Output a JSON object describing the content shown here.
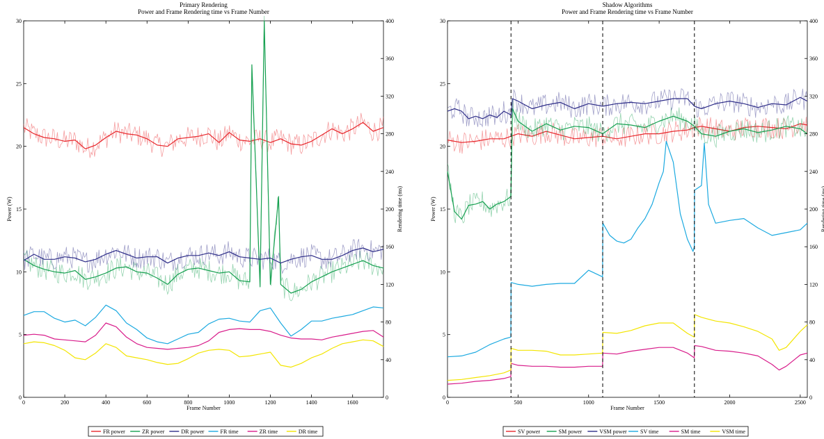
{
  "chart_data": [
    {
      "type": "line",
      "title": "Primary Rendering",
      "subtitle": "Power and Frame Rendering time vs Frame Number",
      "xlabel": "Frame Number",
      "ylabel": "Power (W)",
      "ylabel_right": "Rendering time (ms)",
      "xlim": [
        0,
        1750
      ],
      "ylim": [
        0,
        30
      ],
      "ylim_right": [
        0,
        400
      ],
      "xticks": [
        0,
        200,
        400,
        600,
        800,
        1000,
        1200,
        1400,
        1600
      ],
      "yticks": [
        0,
        5,
        10,
        15,
        20,
        25,
        30
      ],
      "yticks_right": [
        0,
        40,
        80,
        120,
        160,
        200,
        240,
        280,
        320,
        360,
        400
      ],
      "grid": false,
      "legend_position": "bottom",
      "series": [
        {
          "name": "FR power",
          "axis": "left",
          "color": "#e8262b",
          "x": [
            0,
            50,
            100,
            150,
            200,
            250,
            300,
            350,
            400,
            450,
            500,
            550,
            600,
            650,
            700,
            750,
            800,
            850,
            900,
            950,
            1000,
            1050,
            1100,
            1150,
            1200,
            1250,
            1300,
            1350,
            1400,
            1450,
            1500,
            1550,
            1600,
            1650,
            1700,
            1750
          ],
          "y": [
            21.5,
            21.0,
            20.7,
            20.6,
            20.4,
            20.5,
            19.8,
            20.1,
            20.7,
            21.2,
            21.0,
            20.9,
            20.6,
            20.1,
            20.0,
            20.6,
            20.7,
            20.8,
            21.0,
            20.3,
            21.1,
            20.5,
            20.4,
            20.6,
            20.3,
            20.6,
            20.2,
            20.1,
            20.4,
            20.9,
            21.4,
            21.0,
            21.4,
            21.9,
            21.2,
            21.5
          ]
        },
        {
          "name": "ZR power",
          "axis": "left",
          "color": "#16a050",
          "x": [
            0,
            50,
            100,
            150,
            200,
            250,
            300,
            350,
            400,
            450,
            500,
            550,
            600,
            650,
            700,
            750,
            800,
            850,
            900,
            950,
            1000,
            1050,
            1100,
            1110,
            1150,
            1170,
            1200,
            1240,
            1250,
            1300,
            1350,
            1400,
            1450,
            1500,
            1550,
            1600,
            1650,
            1700,
            1750
          ],
          "y": [
            11.0,
            10.5,
            10.2,
            10.0,
            9.9,
            10.1,
            9.4,
            9.6,
            9.9,
            10.3,
            10.4,
            10.0,
            9.9,
            9.5,
            9.0,
            9.8,
            10.2,
            10.3,
            10.1,
            9.9,
            10.0,
            9.3,
            9.2,
            26.5,
            8.8,
            30.0,
            9.0,
            16.0,
            9.0,
            8.3,
            8.6,
            9.2,
            9.6,
            10.0,
            10.3,
            10.6,
            10.9,
            10.5,
            10.3
          ]
        },
        {
          "name": "DR power",
          "axis": "left",
          "color": "#2e2d88",
          "x": [
            0,
            50,
            100,
            150,
            200,
            250,
            300,
            350,
            400,
            450,
            500,
            550,
            600,
            650,
            700,
            750,
            800,
            850,
            900,
            950,
            1000,
            1050,
            1100,
            1150,
            1200,
            1250,
            1300,
            1350,
            1400,
            1450,
            1500,
            1550,
            1600,
            1650,
            1700,
            1750
          ],
          "y": [
            10.9,
            11.4,
            11.0,
            11.0,
            11.2,
            11.1,
            10.8,
            11.0,
            11.4,
            11.7,
            11.4,
            11.1,
            11.2,
            11.2,
            10.7,
            11.1,
            11.3,
            11.3,
            11.5,
            11.3,
            11.6,
            11.2,
            11.1,
            11.0,
            11.1,
            10.7,
            11.0,
            11.2,
            11.3,
            11.0,
            11.0,
            11.3,
            11.7,
            11.9,
            11.6,
            11.8
          ]
        },
        {
          "name": "FR time",
          "axis": "right",
          "color": "#1ba9e0",
          "x": [
            0,
            50,
            100,
            150,
            200,
            250,
            300,
            350,
            400,
            450,
            500,
            550,
            600,
            650,
            700,
            750,
            800,
            850,
            900,
            950,
            1000,
            1050,
            1100,
            1150,
            1200,
            1250,
            1300,
            1350,
            1400,
            1450,
            1500,
            1550,
            1600,
            1650,
            1700,
            1750
          ],
          "y": [
            87,
            91,
            91,
            84,
            80,
            82,
            76,
            85,
            98,
            92,
            79,
            72,
            63,
            59,
            57,
            62,
            67,
            69,
            78,
            83,
            84,
            81,
            80,
            92,
            95,
            79,
            65,
            72,
            81,
            81,
            84,
            86,
            88,
            92,
            96,
            95
          ]
        },
        {
          "name": "ZR time",
          "axis": "right",
          "color": "#d81b8a",
          "x": [
            0,
            50,
            100,
            150,
            200,
            250,
            300,
            350,
            400,
            450,
            500,
            550,
            600,
            650,
            700,
            750,
            800,
            850,
            900,
            950,
            1000,
            1050,
            1100,
            1150,
            1200,
            1250,
            1300,
            1350,
            1400,
            1450,
            1500,
            1550,
            1600,
            1650,
            1700,
            1750
          ],
          "y": [
            66,
            67,
            66,
            62,
            61,
            60,
            59,
            66,
            79,
            75,
            64,
            57,
            53,
            52,
            51,
            52,
            53,
            55,
            60,
            69,
            72,
            73,
            72,
            72,
            70,
            66,
            63,
            62,
            62,
            61,
            64,
            66,
            68,
            70,
            71,
            64
          ]
        },
        {
          "name": "DR time",
          "axis": "right",
          "color": "#f3e500",
          "x": [
            0,
            50,
            100,
            150,
            200,
            250,
            300,
            350,
            400,
            450,
            500,
            550,
            600,
            650,
            700,
            750,
            800,
            850,
            900,
            950,
            1000,
            1050,
            1100,
            1150,
            1200,
            1250,
            1300,
            1350,
            1400,
            1450,
            1500,
            1550,
            1600,
            1650,
            1700,
            1750
          ],
          "y": [
            57,
            59,
            58,
            55,
            50,
            42,
            40,
            47,
            57,
            53,
            44,
            42,
            40,
            37,
            35,
            36,
            41,
            47,
            50,
            51,
            50,
            43,
            44,
            46,
            48,
            34,
            32,
            36,
            42,
            46,
            52,
            57,
            59,
            61,
            60,
            54
          ]
        }
      ]
    },
    {
      "type": "line",
      "title": "Shadow Algorithms",
      "subtitle": "Power and Frame Rendering time vs Frame Number",
      "xlabel": "Frame Number",
      "ylabel": "Power (W)",
      "ylabel_right": "Rendering time (ms)",
      "xlim": [
        0,
        2550
      ],
      "ylim": [
        0,
        30
      ],
      "ylim_right": [
        0,
        400
      ],
      "xticks": [
        0,
        500,
        1000,
        1500,
        2000,
        2500
      ],
      "yticks": [
        0,
        5,
        10,
        15,
        20,
        25,
        30
      ],
      "yticks_right": [
        0,
        40,
        80,
        120,
        160,
        200,
        240,
        280,
        320,
        360,
        400
      ],
      "vlines": [
        450,
        1100,
        1750
      ],
      "grid": false,
      "legend_position": "bottom",
      "series": [
        {
          "name": "SV power",
          "axis": "left",
          "color": "#e8262b",
          "x": [
            0,
            100,
            200,
            300,
            400,
            450,
            500,
            600,
            700,
            800,
            900,
            1000,
            1100,
            1200,
            1300,
            1400,
            1500,
            1600,
            1700,
            1750,
            1800,
            1900,
            2000,
            2100,
            2200,
            2300,
            2400,
            2500,
            2550
          ],
          "y": [
            20.5,
            20.3,
            20.4,
            20.6,
            20.6,
            20.8,
            21.0,
            20.8,
            21.2,
            20.9,
            20.6,
            20.7,
            20.8,
            20.6,
            20.8,
            21.0,
            21.0,
            21.2,
            21.3,
            21.5,
            21.6,
            21.4,
            21.2,
            21.5,
            21.6,
            21.5,
            21.4,
            21.8,
            21.7
          ]
        },
        {
          "name": "SM power",
          "axis": "left",
          "color": "#16a050",
          "x": [
            0,
            50,
            100,
            150,
            200,
            250,
            300,
            350,
            400,
            450,
            460,
            500,
            600,
            700,
            800,
            900,
            1000,
            1100,
            1200,
            1300,
            1400,
            1500,
            1600,
            1700,
            1750,
            1800,
            1900,
            2000,
            2100,
            2200,
            2300,
            2400,
            2500,
            2550
          ],
          "y": [
            18.0,
            14.8,
            14.2,
            15.3,
            15.4,
            15.6,
            15.0,
            15.4,
            15.6,
            16.0,
            23.0,
            22.0,
            21.2,
            21.8,
            21.3,
            21.6,
            21.5,
            21.0,
            21.8,
            21.7,
            21.5,
            22.0,
            22.4,
            22.0,
            21.6,
            21.0,
            20.8,
            21.2,
            21.4,
            21.1,
            21.3,
            21.6,
            21.4,
            21.0
          ]
        },
        {
          "name": "VSM power",
          "axis": "left",
          "color": "#2e2d88",
          "x": [
            0,
            50,
            100,
            150,
            200,
            250,
            300,
            350,
            400,
            450,
            460,
            500,
            600,
            700,
            800,
            900,
            1000,
            1100,
            1200,
            1300,
            1400,
            1500,
            1600,
            1700,
            1750,
            1800,
            1900,
            2000,
            2100,
            2200,
            2300,
            2400,
            2500,
            2550
          ],
          "y": [
            22.8,
            23.0,
            22.8,
            22.2,
            22.4,
            22.2,
            22.5,
            22.3,
            22.8,
            22.5,
            23.8,
            23.6,
            23.0,
            23.3,
            23.5,
            23.0,
            23.4,
            23.2,
            23.4,
            23.5,
            23.4,
            23.6,
            23.8,
            23.8,
            23.2,
            23.0,
            23.4,
            23.6,
            23.4,
            23.1,
            23.4,
            23.3,
            23.9,
            23.6
          ]
        },
        {
          "name": "SV time",
          "axis": "right",
          "color": "#1ba9e0",
          "x": [
            0,
            100,
            200,
            300,
            400,
            449,
            451,
            500,
            600,
            700,
            800,
            900,
            1000,
            1099,
            1101,
            1150,
            1200,
            1250,
            1300,
            1350,
            1400,
            1450,
            1500,
            1530,
            1550,
            1600,
            1650,
            1700,
            1740,
            1749,
            1751,
            1800,
            1820,
            1850,
            1900,
            2000,
            2100,
            2200,
            2300,
            2400,
            2500,
            2550
          ],
          "y": [
            43,
            44,
            48,
            56,
            62,
            64,
            122,
            120,
            118,
            120,
            121,
            121,
            135,
            128,
            185,
            172,
            166,
            164,
            168,
            180,
            190,
            205,
            228,
            240,
            272,
            250,
            195,
            168,
            155,
            160,
            220,
            225,
            270,
            205,
            185,
            188,
            190,
            180,
            172,
            175,
            178,
            185
          ]
        },
        {
          "name": "SM time",
          "axis": "right",
          "color": "#d81b8a",
          "x": [
            0,
            100,
            200,
            300,
            400,
            449,
            451,
            500,
            600,
            700,
            800,
            900,
            1000,
            1099,
            1101,
            1200,
            1300,
            1400,
            1500,
            1600,
            1700,
            1749,
            1751,
            1800,
            1900,
            2000,
            2100,
            2200,
            2300,
            2350,
            2400,
            2500,
            2550
          ],
          "y": [
            14,
            15,
            17,
            18,
            20,
            22,
            36,
            34,
            33,
            33,
            32,
            32,
            33,
            33,
            47,
            46,
            49,
            51,
            53,
            53,
            47,
            42,
            55,
            54,
            50,
            49,
            47,
            44,
            35,
            29,
            33,
            45,
            47
          ]
        },
        {
          "name": "VSM time",
          "axis": "right",
          "color": "#f3e500",
          "x": [
            0,
            100,
            200,
            300,
            400,
            449,
            451,
            500,
            600,
            700,
            800,
            900,
            1000,
            1099,
            1101,
            1200,
            1300,
            1400,
            1500,
            1600,
            1700,
            1749,
            1751,
            1800,
            1900,
            2000,
            2100,
            2200,
            2300,
            2350,
            2400,
            2500,
            2550
          ],
          "y": [
            18,
            19,
            21,
            23,
            26,
            29,
            52,
            50,
            50,
            49,
            45,
            45,
            46,
            47,
            69,
            68,
            71,
            76,
            79,
            79,
            68,
            64,
            88,
            85,
            81,
            79,
            75,
            70,
            62,
            50,
            53,
            70,
            77
          ]
        }
      ]
    }
  ]
}
